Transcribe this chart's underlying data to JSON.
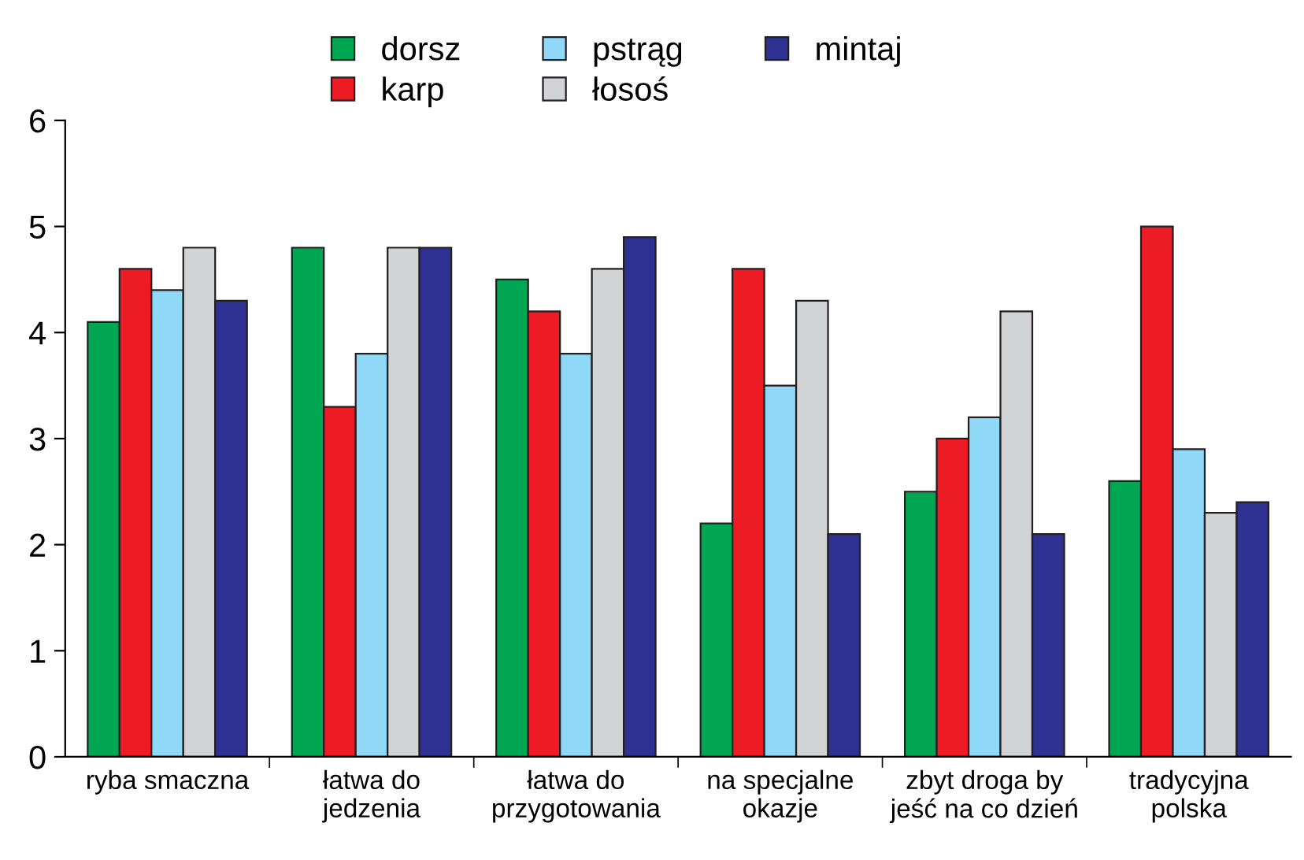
{
  "chart_data": {
    "type": "bar",
    "categories": [
      "ryba smaczna",
      "łatwa do\njedzenia",
      "łatwa do\nprzygotowania",
      "na specjalne\nokazje",
      "zbyt droga by\njeść na co dzień",
      "tradycyjna\npolska"
    ],
    "series": [
      {
        "name": "dorsz",
        "color": "#00a651",
        "values": [
          4.1,
          4.8,
          4.5,
          2.2,
          2.5,
          2.6
        ]
      },
      {
        "name": "karp",
        "color": "#ed1c24",
        "values": [
          4.6,
          3.3,
          4.2,
          4.6,
          3.0,
          5.0
        ]
      },
      {
        "name": "pstrąg",
        "color": "#8fd8f7",
        "values": [
          4.4,
          3.8,
          3.8,
          3.5,
          3.2,
          2.9
        ]
      },
      {
        "name": "łosoś",
        "color": "#d1d3d4",
        "values": [
          4.8,
          4.8,
          4.6,
          4.3,
          4.2,
          2.3
        ]
      },
      {
        "name": "mintaj",
        "color": "#2e3192",
        "values": [
          4.3,
          4.8,
          4.9,
          2.1,
          2.1,
          2.4
        ]
      }
    ],
    "ylim": [
      0,
      6
    ],
    "yticks": [
      0,
      1,
      2,
      3,
      4,
      5,
      6
    ],
    "grid": false,
    "legend": "top"
  }
}
